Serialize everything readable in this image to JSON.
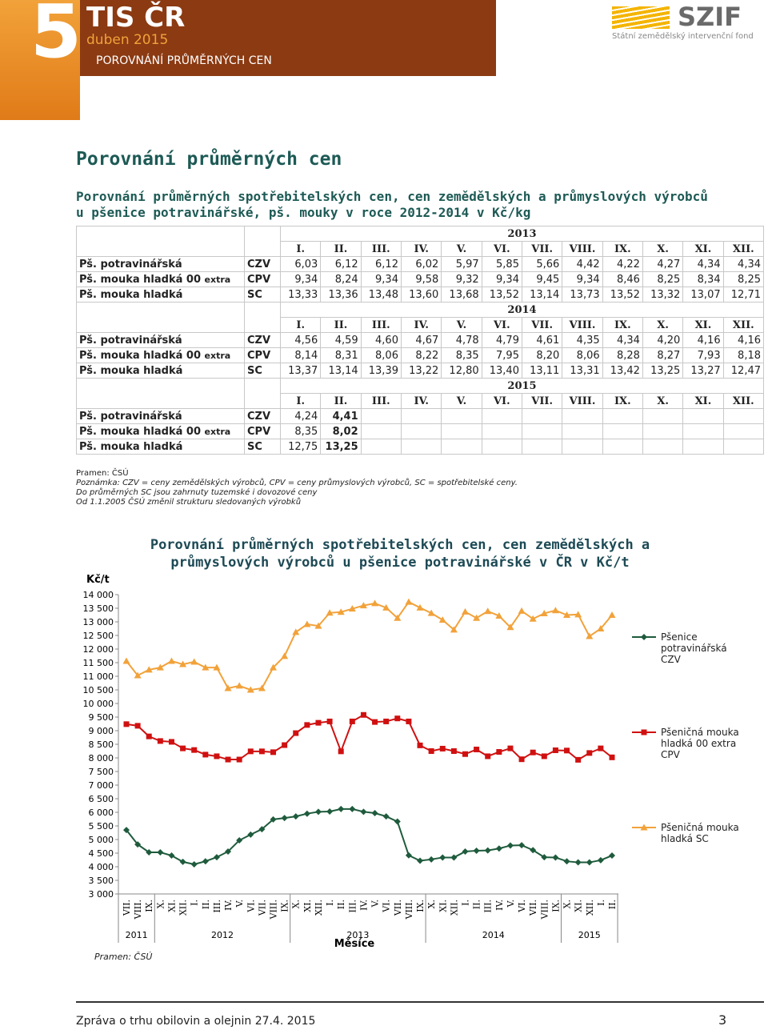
{
  "header": {
    "number": "5",
    "brand": "TIS ČR",
    "date": "duben 2015",
    "section": "POROVNÁNÍ PRŮMĚRNÝCH CEN",
    "logo": "SZIF",
    "logo_sub": "Státní zemědělský intervenční fond"
  },
  "title": "Porovnání průměrných cen",
  "subtitle": "Porovnání průměrných spotřebitelských cen, cen zemědělských a průmyslových výrobců u pšenice potravinářské, pš. mouky v roce 2012-2014 v Kč/kg",
  "table": {
    "blocks": [
      {
        "year": "2013",
        "months": [
          "I.",
          "II.",
          "III.",
          "IV.",
          "V.",
          "VI.",
          "VII.",
          "VIII.",
          "IX.",
          "X.",
          "XI.",
          "XII."
        ],
        "rows": [
          {
            "name": "Pš. potravinářská",
            "code": "CZV",
            "values": [
              "6,03",
              "6,12",
              "6,12",
              "6,02",
              "5,97",
              "5,85",
              "5,66",
              "4,42",
              "4,22",
              "4,27",
              "4,34",
              "4,34"
            ]
          },
          {
            "name": "Pš. mouka hladká 00",
            "name_note": "extra",
            "code": "CPV",
            "values": [
              "9,34",
              "8,24",
              "9,34",
              "9,58",
              "9,32",
              "9,34",
              "9,45",
              "9,34",
              "8,46",
              "8,25",
              "8,34",
              "8,25"
            ]
          },
          {
            "name": "Pš. mouka hladká",
            "code": "SC",
            "values": [
              "13,33",
              "13,36",
              "13,48",
              "13,60",
              "13,68",
              "13,52",
              "13,14",
              "13,73",
              "13,52",
              "13,32",
              "13,07",
              "12,71"
            ]
          }
        ]
      },
      {
        "year": "2014",
        "months": [
          "I.",
          "II.",
          "III.",
          "IV.",
          "V.",
          "VI.",
          "VII.",
          "VIII.",
          "IX.",
          "X.",
          "XI.",
          "XII."
        ],
        "rows": [
          {
            "name": "Pš. potravinářská",
            "code": "CZV",
            "values": [
              "4,56",
              "4,59",
              "4,60",
              "4,67",
              "4,78",
              "4,79",
              "4,61",
              "4,35",
              "4,34",
              "4,20",
              "4,16",
              "4,16"
            ]
          },
          {
            "name": "Pš. mouka hladká 00",
            "name_note": "extra",
            "code": "CPV",
            "values": [
              "8,14",
              "8,31",
              "8,06",
              "8,22",
              "8,35",
              "7,95",
              "8,20",
              "8,06",
              "8,28",
              "8,27",
              "7,93",
              "8,18"
            ]
          },
          {
            "name": "Pš. mouka hladká",
            "code": "SC",
            "values": [
              "13,37",
              "13,14",
              "13,39",
              "13,22",
              "12,80",
              "13,40",
              "13,11",
              "13,31",
              "13,42",
              "13,25",
              "13,27",
              "12,47"
            ]
          }
        ]
      },
      {
        "year": "2015",
        "months": [
          "I.",
          "II.",
          "III.",
          "IV.",
          "V.",
          "VI.",
          "VII.",
          "VIII.",
          "IX.",
          "X.",
          "XI.",
          "XII."
        ],
        "rows": [
          {
            "name": "Pš. potravinářská",
            "code": "CZV",
            "values": [
              "4,24",
              "4,41"
            ]
          },
          {
            "name": "Pš. mouka hladká 00",
            "name_note": "extra",
            "code": "CPV",
            "values": [
              "8,35",
              "8,02"
            ]
          },
          {
            "name": "Pš. mouka hladká",
            "code": "SC",
            "values": [
              "12,75",
              "13,25"
            ]
          }
        ]
      }
    ]
  },
  "notes": [
    "Pramen: ČSÚ",
    "Poznámka: CZV = ceny zemědělských výrobců, CPV = ceny průmyslových výrobců, SC = spotřebitelské ceny.",
    "Do průměrných SC jsou zahrnuty tuzemské i dovozové ceny",
    "Od 1.1.2005 ČSÚ změnil strukturu sledovaných výrobků"
  ],
  "chart_data": {
    "type": "line",
    "title": "Porovnání průměrných spotřebitelských cen, cen zemědělských a průmyslových výrobců u pšenice potravinářské v ČR v Kč/t",
    "y_label": "Kč/t",
    "x_label": "Měsíce",
    "source": "Pramen: ČSÚ",
    "categories": [
      "VII.",
      "VIII.",
      "IX.",
      "X.",
      "XI.",
      "XII.",
      "I.",
      "II.",
      "III.",
      "IV.",
      "V.",
      "VI.",
      "VII.",
      "VIII.",
      "IX.",
      "X.",
      "XI.",
      "XII.",
      "I.",
      "II.",
      "III.",
      "IV.",
      "V.",
      "VI.",
      "VII.",
      "VIII.",
      "IX.",
      "X.",
      "XI.",
      "XII.",
      "I.",
      "II.",
      "III.",
      "IV.",
      "V.",
      "VI.",
      "VII.",
      "VIII.",
      "IX.",
      "X.",
      "XI.",
      "XII.",
      "I.",
      "II."
    ],
    "year_labels": [
      "2011",
      "2012",
      "2013",
      "2014",
      "2015"
    ],
    "ylim": [
      3000,
      14000
    ],
    "yticks": [
      {
        "value": 3000,
        "label": "3 000"
      },
      {
        "value": 3500,
        "label": "3 500"
      },
      {
        "value": 4000,
        "label": "4 000"
      },
      {
        "value": 4500,
        "label": "4 500"
      },
      {
        "value": 5000,
        "label": "5 000"
      },
      {
        "value": 5500,
        "label": "5 500"
      },
      {
        "value": 6000,
        "label": "6 000"
      },
      {
        "value": 6500,
        "label": "6 500"
      },
      {
        "value": 7000,
        "label": "7 000"
      },
      {
        "value": 7500,
        "label": "7 500"
      },
      {
        "value": 8000,
        "label": "8 000"
      },
      {
        "value": 8500,
        "label": "8 500"
      },
      {
        "value": 9000,
        "label": "9 000"
      },
      {
        "value": 9500,
        "label": "9 500"
      },
      {
        "value": 10000,
        "label": "10 000"
      },
      {
        "value": 10500,
        "label": "10 500"
      },
      {
        "value": 11000,
        "label": "11 000"
      },
      {
        "value": 11500,
        "label": "11 500"
      },
      {
        "value": 12000,
        "label": "12 000"
      },
      {
        "value": 12500,
        "label": "12 500"
      },
      {
        "value": 13000,
        "label": "13 000"
      },
      {
        "value": 13500,
        "label": "13 500"
      },
      {
        "value": 14000,
        "label": "14 000"
      }
    ],
    "grid": false,
    "series": [
      {
        "name": "Pšenice potravinářská CZV",
        "color": "#1e5b3c",
        "marker": "diamond",
        "values": [
          5350,
          4820,
          4530,
          4530,
          4410,
          4180,
          4090,
          4200,
          4350,
          4560,
          4970,
          5180,
          5380,
          5740,
          5790,
          5850,
          5950,
          6020,
          6030,
          6120,
          6120,
          6020,
          5970,
          5850,
          5660,
          4420,
          4220,
          4270,
          4340,
          4340,
          4560,
          4590,
          4600,
          4670,
          4780,
          4790,
          4610,
          4350,
          4340,
          4200,
          4160,
          4160,
          4240,
          4410
        ]
      },
      {
        "name": "Pšeničná mouka hladká 00 extra CPV",
        "color": "#d01010",
        "marker": "square",
        "values": [
          9240,
          9180,
          8790,
          8620,
          8590,
          8350,
          8290,
          8120,
          8060,
          7940,
          7940,
          8240,
          8240,
          8210,
          8470,
          8910,
          9210,
          9290,
          9340,
          8240,
          9340,
          9580,
          9320,
          9340,
          9450,
          9340,
          8460,
          8250,
          8340,
          8250,
          8140,
          8310,
          8060,
          8220,
          8350,
          7950,
          8200,
          8060,
          8280,
          8270,
          7930,
          8180,
          8350,
          8020
        ]
      },
      {
        "name": "Pšeničná mouka hladká  SC",
        "color": "#f2a23a",
        "marker": "triangle",
        "values": [
          11560,
          11030,
          11240,
          11320,
          11560,
          11440,
          11530,
          11320,
          11320,
          10560,
          10650,
          10500,
          10560,
          11320,
          11740,
          12620,
          12910,
          12850,
          13330,
          13360,
          13480,
          13600,
          13680,
          13520,
          13140,
          13730,
          13520,
          13320,
          13070,
          12710,
          13370,
          13140,
          13390,
          13220,
          12800,
          13400,
          13110,
          13310,
          13420,
          13250,
          13270,
          12470,
          12750,
          13250
        ]
      }
    ]
  },
  "footer": {
    "text": "Zpráva o trhu obilovin a olejnin 27.4. 2015",
    "page": "3"
  }
}
